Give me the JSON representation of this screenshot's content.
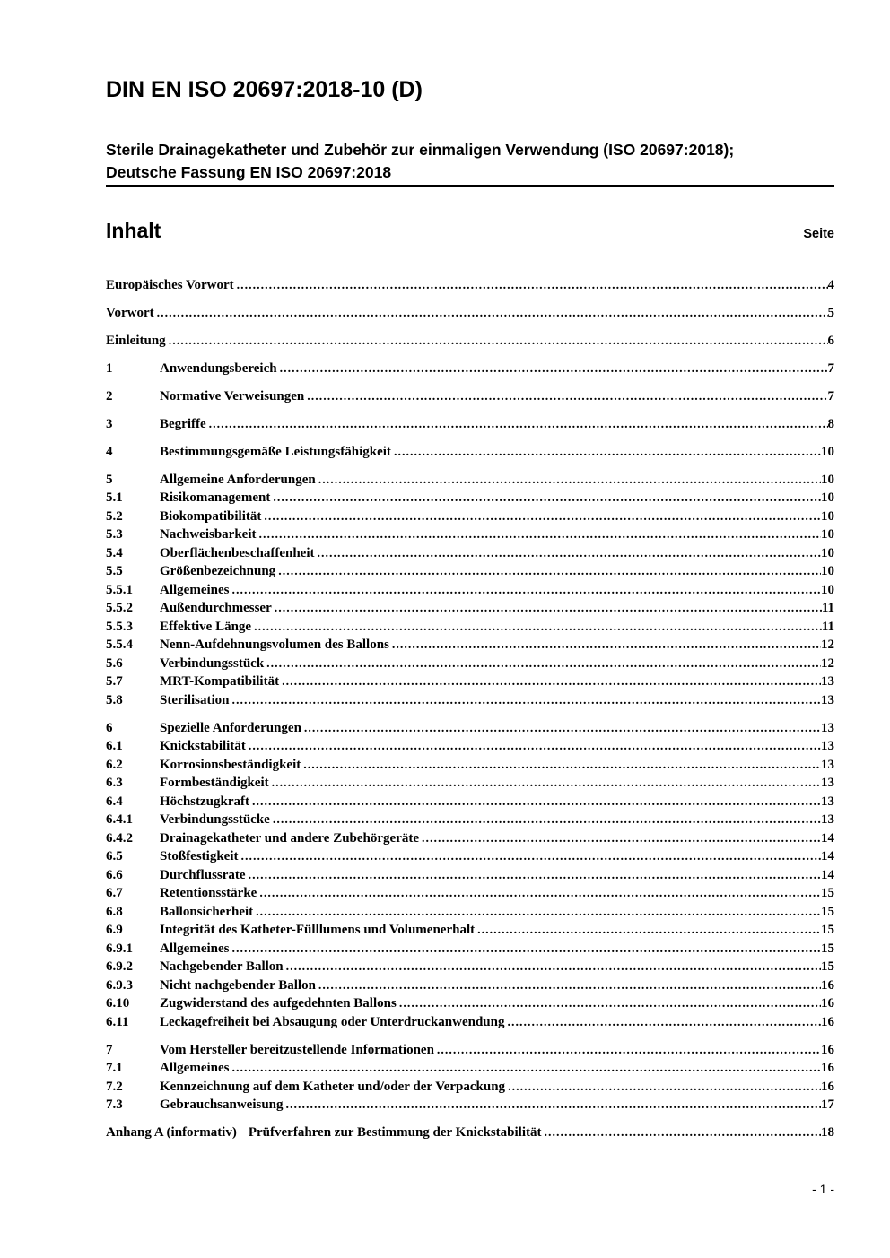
{
  "header": {
    "title": "DIN EN ISO 20697:2018-10 (D)",
    "subtitle_line1": "Sterile Drainagekatheter und Zubehör zur einmaligen Verwendung (ISO 20697:2018);",
    "subtitle_line2": "Deutsche Fassung EN ISO 20697:2018"
  },
  "toc": {
    "title": "Inhalt",
    "page_column_label": "Seite",
    "entries": [
      {
        "num": "",
        "label": "Europäisches Vorwort",
        "page": "4",
        "spaced": true
      },
      {
        "num": "",
        "label": "Vorwort",
        "page": "5",
        "spaced": true
      },
      {
        "num": "",
        "label": "Einleitung",
        "page": "6",
        "spaced": true
      },
      {
        "num": "1",
        "label": "Anwendungsbereich",
        "page": "7",
        "spaced": true
      },
      {
        "num": "2",
        "label": "Normative Verweisungen",
        "page": "7",
        "spaced": true
      },
      {
        "num": "3",
        "label": "Begriffe",
        "page": "8",
        "spaced": true
      },
      {
        "num": "4",
        "label": "Bestimmungsgemäße Leistungsfähigkeit",
        "page": "10",
        "spaced": true
      },
      {
        "num": "5",
        "label": "Allgemeine Anforderungen",
        "page": "10",
        "spaced": true
      },
      {
        "num": "5.1",
        "label": "Risikomanagement",
        "page": "10"
      },
      {
        "num": "5.2",
        "label": "Biokompatibilität",
        "page": "10"
      },
      {
        "num": "5.3",
        "label": "Nachweisbarkeit",
        "page": "10"
      },
      {
        "num": "5.4",
        "label": "Oberflächenbeschaffenheit",
        "page": "10"
      },
      {
        "num": "5.5",
        "label": "Größenbezeichnung",
        "page": "10"
      },
      {
        "num": "5.5.1",
        "label": "Allgemeines",
        "page": "10"
      },
      {
        "num": "5.5.2",
        "label": "Außendurchmesser",
        "page": "11"
      },
      {
        "num": "5.5.3",
        "label": "Effektive Länge",
        "page": "11"
      },
      {
        "num": "5.5.4",
        "label": "Nenn-Aufdehnungsvolumen des Ballons",
        "page": "12"
      },
      {
        "num": "5.6",
        "label": "Verbindungsstück",
        "page": "12"
      },
      {
        "num": "5.7",
        "label": "MRT-Kompatibilität",
        "page": "13"
      },
      {
        "num": "5.8",
        "label": "Sterilisation",
        "page": "13"
      },
      {
        "num": "6",
        "label": "Spezielle Anforderungen",
        "page": "13",
        "spaced": true
      },
      {
        "num": "6.1",
        "label": "Knickstabilität",
        "page": "13"
      },
      {
        "num": "6.2",
        "label": "Korrosionsbeständigkeit",
        "page": "13"
      },
      {
        "num": "6.3",
        "label": "Formbeständigkeit",
        "page": "13"
      },
      {
        "num": "6.4",
        "label": "Höchstzugkraft",
        "page": "13"
      },
      {
        "num": "6.4.1",
        "label": "Verbindungsstücke",
        "page": "13"
      },
      {
        "num": "6.4.2",
        "label": "Drainagekatheter und andere Zubehörgeräte",
        "page": "14"
      },
      {
        "num": "6.5",
        "label": "Stoßfestigkeit",
        "page": "14"
      },
      {
        "num": "6.6",
        "label": "Durchflussrate",
        "page": "14"
      },
      {
        "num": "6.7",
        "label": "Retentionsstärke",
        "page": "15"
      },
      {
        "num": "6.8",
        "label": "Ballonsicherheit",
        "page": "15"
      },
      {
        "num": "6.9",
        "label": "Integrität des Katheter-Fülllumens und Volumenerhalt",
        "page": "15"
      },
      {
        "num": "6.9.1",
        "label": "Allgemeines",
        "page": "15"
      },
      {
        "num": "6.9.2",
        "label": "Nachgebender Ballon",
        "page": "15"
      },
      {
        "num": "6.9.3",
        "label": "Nicht nachgebender Ballon",
        "page": "16"
      },
      {
        "num": "6.10",
        "label": "Zugwiderstand des aufgedehnten Ballons",
        "page": "16"
      },
      {
        "num": "6.11",
        "label": "Leckagefreiheit bei Absaugung oder Unterdruckanwendung",
        "page": "16"
      },
      {
        "num": "7",
        "label": "Vom Hersteller bereitzustellende Informationen",
        "page": "16",
        "spaced": true
      },
      {
        "num": "7.1",
        "label": "Allgemeines",
        "page": "16"
      },
      {
        "num": "7.2",
        "label": "Kennzeichnung auf dem Katheter und/oder der Verpackung",
        "page": "16"
      },
      {
        "num": "7.3",
        "label": "Gebrauchsanweisung",
        "page": "17"
      },
      {
        "num": "Anhang A (informativ)",
        "label": "Prüfverfahren zur Bestimmung der Knickstabilität",
        "page": "18",
        "spaced": true,
        "inline_num": true
      }
    ]
  },
  "footer": {
    "page_number": "- 1 -"
  }
}
